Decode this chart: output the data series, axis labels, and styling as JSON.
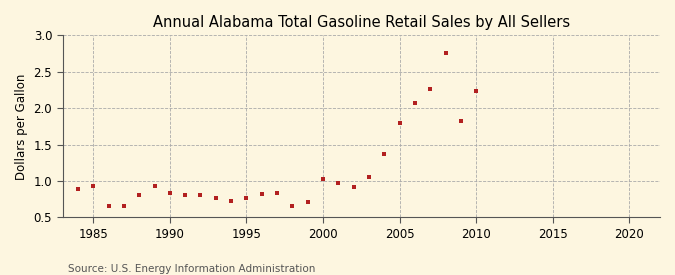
{
  "title": "Annual Alabama Total Gasoline Retail Sales by All Sellers",
  "ylabel": "Dollars per Gallon",
  "source": "Source: U.S. Energy Information Administration",
  "background_color": "#fdf6e0",
  "plot_bg_color": "#fdf6e0",
  "marker_color": "#b22020",
  "years": [
    1984,
    1985,
    1986,
    1987,
    1988,
    1989,
    1990,
    1991,
    1992,
    1993,
    1994,
    1995,
    1996,
    1997,
    1998,
    1999,
    2000,
    2001,
    2002,
    2003,
    2004,
    2005,
    2006,
    2007,
    2008,
    2009,
    2010
  ],
  "values": [
    0.89,
    0.93,
    0.65,
    0.66,
    0.8,
    0.93,
    0.83,
    0.81,
    0.8,
    0.76,
    0.73,
    0.77,
    0.82,
    0.84,
    0.65,
    0.71,
    1.03,
    0.97,
    0.91,
    1.06,
    1.37,
    1.8,
    2.07,
    2.26,
    2.76,
    1.83,
    2.23
  ],
  "xlim": [
    1983,
    2022
  ],
  "ylim": [
    0.5,
    3.0
  ],
  "xticks": [
    1985,
    1990,
    1995,
    2000,
    2005,
    2010,
    2015,
    2020
  ],
  "yticks": [
    0.5,
    1.0,
    1.5,
    2.0,
    2.5,
    3.0
  ],
  "title_fontsize": 10.5,
  "label_fontsize": 8.5,
  "tick_fontsize": 8.5,
  "source_fontsize": 7.5
}
